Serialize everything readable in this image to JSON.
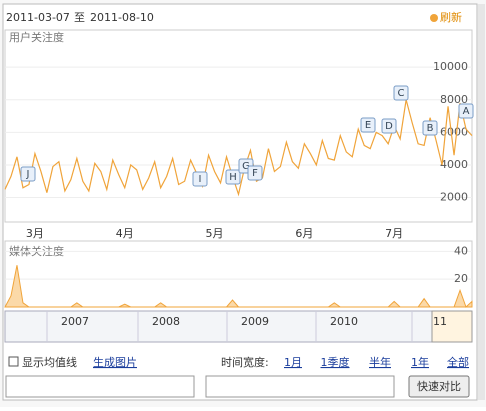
{
  "header": {
    "range_start": "2011-03-07",
    "range_sep": "至",
    "range_end": "2011-08-10",
    "refresh": "刷新"
  },
  "chart_data": [
    {
      "type": "line",
      "title": "用户关注度",
      "color": "#f0a43a",
      "categories": [
        null,
        null,
        null,
        null,
        null,
        "3月",
        null,
        null,
        null,
        null,
        null,
        null,
        null,
        null,
        null,
        null,
        null,
        null,
        null,
        null,
        "4月",
        null,
        null,
        null,
        null,
        null,
        null,
        null,
        null,
        null,
        null,
        null,
        null,
        null,
        null,
        "5月",
        null,
        null,
        null,
        null,
        null,
        null,
        null,
        null,
        null,
        null,
        null,
        null,
        null,
        null,
        "6月",
        null,
        null,
        null,
        null,
        null,
        null,
        null,
        null,
        null,
        null,
        null,
        null,
        null,
        null,
        "7月",
        null,
        null,
        null,
        null,
        null,
        null,
        null,
        null,
        null,
        null,
        null,
        null,
        null
      ],
      "values": [
        2500,
        3300,
        4500,
        2600,
        2800,
        4700,
        3600,
        2300,
        3900,
        4200,
        2400,
        3100,
        4400,
        3000,
        2400,
        4100,
        3600,
        2500,
        4300,
        3400,
        2600,
        4000,
        3700,
        2500,
        3200,
        4200,
        2600,
        3300,
        4400,
        2800,
        3000,
        4300,
        3500,
        2700,
        4600,
        3600,
        2900,
        4500,
        3300,
        2200,
        3800,
        4900,
        3000,
        3200,
        5000,
        3600,
        3900,
        5400,
        4200,
        3800,
        5300,
        4700,
        4000,
        5500,
        4400,
        4300,
        5800,
        4800,
        4500,
        6200,
        5200,
        5000,
        6000,
        5800,
        5300,
        6400,
        5600,
        8000,
        6600,
        5300,
        5200,
        6900,
        5500,
        4000,
        7600,
        4600,
        7800,
        6200,
        5800
      ],
      "ylim": [
        500,
        11300
      ],
      "yticks": [
        2000,
        4000,
        6000,
        8000,
        10000
      ],
      "annotations": [
        "J",
        "I",
        "H",
        "G",
        "F",
        "E",
        "D",
        "C",
        "B",
        "A"
      ]
    },
    {
      "type": "area",
      "title": "媒体关注度",
      "color": "#f0a43a",
      "values": [
        0,
        8,
        30,
        3,
        0,
        0,
        0,
        0,
        0,
        0,
        0,
        0,
        3,
        0,
        0,
        0,
        0,
        0,
        0,
        0,
        2,
        0,
        0,
        0,
        0,
        0,
        3,
        0,
        0,
        0,
        0,
        0,
        0,
        0,
        0,
        0,
        0,
        0,
        5,
        0,
        0,
        0,
        0,
        0,
        0,
        0,
        0,
        0,
        0,
        0,
        0,
        0,
        0,
        0,
        0,
        3,
        0,
        0,
        0,
        0,
        0,
        0,
        0,
        0,
        0,
        4,
        0,
        0,
        0,
        0,
        6,
        0,
        0,
        0,
        0,
        0,
        12,
        0,
        4
      ],
      "ylim": [
        0,
        46
      ],
      "yticks": [
        20,
        40
      ]
    }
  ],
  "timeline": {
    "years": [
      "2007",
      "2008",
      "2009",
      "2010",
      "11"
    ]
  },
  "controls": {
    "avg_line": "显示均值线",
    "make_image": "生成图片",
    "width_label": "时间宽度:",
    "ranges": [
      "1月",
      "1季度",
      "半年",
      "1年",
      "全部"
    ],
    "compare": "快速对比"
  }
}
